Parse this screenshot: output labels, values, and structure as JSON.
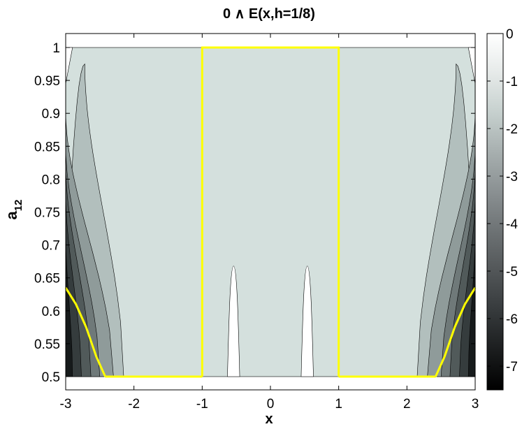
{
  "chart_data": {
    "type": "heatmap",
    "title": "0 ∧ E(x,h=1/8)",
    "xlabel": "x",
    "ylabel": "a",
    "ylabel_sub": "12",
    "xlim": [
      -3,
      3
    ],
    "ylim": [
      0.5,
      1.0
    ],
    "xticks": [
      "-3",
      "-2",
      "-1",
      "0",
      "1",
      "2",
      "3"
    ],
    "yticks": [
      "0.5",
      "0.55",
      "0.6",
      "0.65",
      "0.7",
      "0.75",
      "0.8",
      "0.85",
      "0.9",
      "0.95",
      "1"
    ],
    "colorbar": {
      "range": [
        -7.5,
        0
      ],
      "ticks": [
        "0",
        "-1",
        "-2",
        "-3",
        "-4",
        "-5",
        "-6",
        "-7"
      ],
      "colors": [
        "#000000",
        "#1b1d1e",
        "#363a3c",
        "#525658",
        "#6d7274",
        "#8a9092",
        "#a7afaf",
        "#c6d0ce",
        "#e6eae9",
        "#ffffff"
      ]
    },
    "contour_levels": [
      -7,
      -6,
      -5,
      -4,
      -3,
      -2,
      -1
    ],
    "filled_bands": [
      {
        "level": -1,
        "color": "#d4e0dd"
      },
      {
        "level": -2,
        "color": "#b2bfbd"
      },
      {
        "level": -3,
        "color": "#8f9b9a"
      },
      {
        "level": -4,
        "color": "#6f7979"
      },
      {
        "level": -5,
        "color": "#515a5a"
      },
      {
        "level": -6,
        "color": "#353c3d"
      },
      {
        "level": -7,
        "color": "#161a1b"
      }
    ],
    "background_level_color": "#d4e0dd",
    "zero_regions": [
      {
        "x": [
          -0.63,
          -0.45
        ],
        "ymax": 0.668
      },
      {
        "x": [
          0.45,
          0.63
        ],
        "ymax": 0.668
      }
    ],
    "yellow_boundary": {
      "color": "#ffff00",
      "rectangle": {
        "x": [
          -1,
          1
        ],
        "y": [
          0.5,
          1.0
        ]
      },
      "left_curve": [
        [
          -3.0,
          0.635
        ],
        [
          -2.85,
          0.61
        ],
        [
          -2.7,
          0.575
        ],
        [
          -2.55,
          0.53
        ],
        [
          -2.42,
          0.5
        ]
      ],
      "right_curve": [
        [
          2.42,
          0.5
        ],
        [
          2.55,
          0.53
        ],
        [
          2.7,
          0.575
        ],
        [
          2.85,
          0.61
        ],
        [
          3.0,
          0.635
        ]
      ]
    }
  }
}
